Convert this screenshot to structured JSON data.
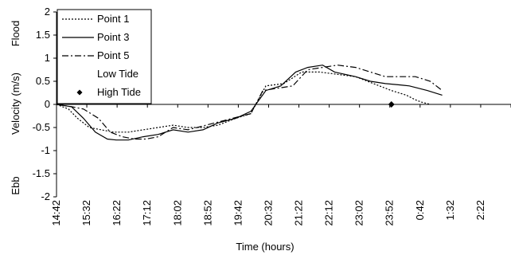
{
  "chart_data": {
    "type": "line",
    "title": "",
    "xlabel": "Time (hours)",
    "ylabel": "Velocity (m/s)",
    "flood_label": "Flood",
    "ebb_label": "Ebb",
    "ylim": [
      -2,
      2
    ],
    "yticks": [
      "2",
      "1.5",
      "1",
      "0.5",
      "0",
      "-0.5",
      "-1",
      "-1.5",
      "-2"
    ],
    "ytick_values": [
      2,
      1.5,
      1,
      0.5,
      0,
      -0.5,
      -1,
      -1.5,
      -2
    ],
    "xlim_minutes": [
      0,
      760
    ],
    "xticks": [
      "14:42",
      "15:32",
      "16:22",
      "17:12",
      "18:02",
      "18:52",
      "19:42",
      "20:32",
      "21:22",
      "22:12",
      "23:02",
      "23:52",
      "0:42",
      "1:32",
      "2:22"
    ],
    "legend_position": "top-left",
    "series": [
      {
        "name": "Point 1",
        "style": "dotted",
        "x": [
          0,
          20,
          35,
          55,
          75,
          95,
          120,
          145,
          170,
          195,
          220,
          245,
          270,
          300,
          325,
          350,
          380,
          410,
          440,
          470,
          500,
          520,
          540,
          560,
          585,
          600,
          610,
          625
        ],
        "y": [
          0,
          -0.1,
          -0.3,
          -0.5,
          -0.55,
          -0.6,
          -0.6,
          -0.55,
          -0.5,
          -0.45,
          -0.5,
          -0.5,
          -0.45,
          -0.3,
          -0.2,
          0.4,
          0.45,
          0.7,
          0.7,
          0.65,
          0.6,
          0.5,
          0.4,
          0.3,
          0.2,
          0.1,
          0.05,
          0
        ]
      },
      {
        "name": "Point 3",
        "style": "solid",
        "x": [
          0,
          25,
          45,
          65,
          85,
          100,
          120,
          145,
          170,
          195,
          220,
          245,
          270,
          300,
          325,
          350,
          375,
          400,
          420,
          445,
          465,
          500,
          525,
          550,
          575,
          590,
          620,
          645
        ],
        "y": [
          0,
          -0.05,
          -0.3,
          -0.6,
          -0.75,
          -0.77,
          -0.77,
          -0.7,
          -0.65,
          -0.55,
          -0.6,
          -0.55,
          -0.4,
          -0.3,
          -0.15,
          0.3,
          0.4,
          0.7,
          0.8,
          0.85,
          0.7,
          0.6,
          0.5,
          0.45,
          0.42,
          0.4,
          0.3,
          0.2
        ]
      },
      {
        "name": "Point 5",
        "style": "dashdot",
        "x": [
          0,
          25,
          45,
          70,
          90,
          110,
          130,
          150,
          170,
          195,
          220,
          250,
          280,
          310,
          325,
          345,
          370,
          395,
          420,
          445,
          470,
          500,
          525,
          550,
          575,
          600,
          625,
          645
        ],
        "y": [
          0,
          -0.05,
          -0.1,
          -0.3,
          -0.6,
          -0.7,
          -0.75,
          -0.75,
          -0.7,
          -0.5,
          -0.55,
          -0.45,
          -0.35,
          -0.25,
          -0.2,
          0.3,
          0.35,
          0.4,
          0.75,
          0.8,
          0.85,
          0.8,
          0.7,
          0.6,
          0.6,
          0.6,
          0.5,
          0.3
        ]
      }
    ],
    "legend": [
      {
        "label": "Point 1",
        "marker": "dotted"
      },
      {
        "label": "Point 3",
        "marker": "solid"
      },
      {
        "label": "Point 5",
        "marker": "dashdot"
      },
      {
        "label": "Low Tide",
        "marker": "none"
      },
      {
        "label": "High Tide",
        "marker": "diamond"
      }
    ],
    "high_tide_points": [
      {
        "x": 560,
        "y": 0
      }
    ]
  }
}
